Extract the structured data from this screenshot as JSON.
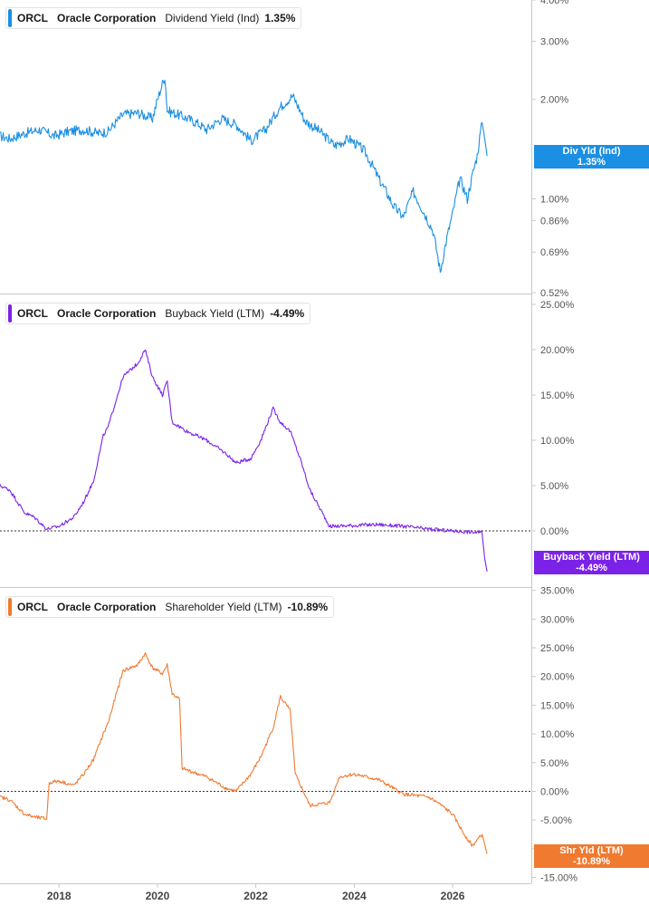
{
  "chart_data": [
    {
      "type": "line",
      "ticker": "ORCL",
      "company": "Oracle Corporation",
      "metric": "Dividend Yield (Ind)",
      "current_value": "1.35%",
      "tag_label": "Div Yld (Ind)",
      "color": "#1a8fe3",
      "scale": "log",
      "ylim": [
        0.52,
        4.0
      ],
      "yticks": [
        4.0,
        3.0,
        2.0,
        1.0,
        0.86,
        0.69,
        0.52
      ],
      "ytick_labels": [
        "4.00%",
        "3.00%",
        "2.00%",
        "1.00%",
        "0.86%",
        "0.69%",
        "0.52%"
      ],
      "zero_line": false,
      "x": [
        2016.8,
        2017.0,
        2017.3,
        2017.6,
        2017.9,
        2018.2,
        2018.5,
        2018.8,
        2019.0,
        2019.3,
        2019.6,
        2019.9,
        2020.15,
        2020.2,
        2020.5,
        2020.8,
        2021.0,
        2021.3,
        2021.6,
        2021.9,
        2022.2,
        2022.5,
        2022.75,
        2023.0,
        2023.3,
        2023.6,
        2023.9,
        2024.2,
        2024.5,
        2024.8,
        2025.0,
        2025.2,
        2025.4,
        2025.6,
        2025.75,
        2026.0,
        2026.15,
        2026.3,
        2026.5,
        2026.6,
        2026.7
      ],
      "values": [
        1.55,
        1.52,
        1.58,
        1.62,
        1.55,
        1.6,
        1.62,
        1.58,
        1.6,
        1.8,
        1.82,
        1.75,
        2.35,
        1.85,
        1.78,
        1.7,
        1.62,
        1.75,
        1.68,
        1.5,
        1.62,
        1.9,
        2.05,
        1.72,
        1.6,
        1.45,
        1.52,
        1.4,
        1.15,
        0.95,
        0.88,
        1.05,
        0.92,
        0.8,
        0.6,
        0.9,
        1.15,
        1.0,
        1.35,
        1.7,
        1.35
      ]
    },
    {
      "type": "line",
      "ticker": "ORCL",
      "company": "Oracle Corporation",
      "metric": "Buyback Yield (LTM)",
      "current_value": "-4.49%",
      "tag_label": "Buyback Yield (LTM)",
      "color": "#7b22e8",
      "scale": "linear",
      "ylim": [
        -7.0,
        27.0
      ],
      "yticks": [
        25,
        20,
        15,
        10,
        5,
        0
      ],
      "ytick_labels": [
        "25.00%",
        "20.00%",
        "15.00%",
        "10.00%",
        "5.00%",
        "0.00%"
      ],
      "zero_line": true,
      "x": [
        2016.8,
        2017.0,
        2017.3,
        2017.5,
        2017.75,
        2018.0,
        2018.3,
        2018.5,
        2018.7,
        2018.9,
        2019.0,
        2019.3,
        2019.6,
        2019.75,
        2019.9,
        2020.1,
        2020.2,
        2020.3,
        2020.6,
        2021.0,
        2021.4,
        2021.6,
        2021.9,
        2022.1,
        2022.35,
        2022.5,
        2022.7,
        2022.9,
        2023.1,
        2023.5,
        2024.0,
        2024.5,
        2025.0,
        2025.5,
        2026.0,
        2026.6,
        2026.65,
        2026.7
      ],
      "values": [
        5.0,
        4.5,
        2.0,
        1.5,
        0.2,
        0.5,
        1.5,
        3.2,
        5.5,
        10.5,
        11.5,
        17.0,
        18.5,
        20.0,
        17.0,
        15.0,
        16.5,
        12.0,
        11.0,
        10.0,
        8.5,
        7.5,
        8.0,
        10.0,
        13.5,
        12.0,
        11.0,
        8.0,
        4.5,
        0.5,
        0.6,
        0.7,
        0.5,
        0.2,
        0.0,
        -0.2,
        -3.0,
        -4.49
      ]
    },
    {
      "type": "line",
      "ticker": "ORCL",
      "company": "Oracle Corporation",
      "metric": "Shareholder Yield (LTM)",
      "current_value": "-10.89%",
      "tag_label": "Shr Yld (LTM)",
      "color": "#f07a30",
      "scale": "linear",
      "ylim": [
        -16.5,
        37.0
      ],
      "yticks": [
        35,
        30,
        25,
        20,
        15,
        10,
        5,
        0,
        -5,
        -10,
        -15
      ],
      "ytick_labels": [
        "35.00%",
        "30.00%",
        "25.00%",
        "20.00%",
        "15.00%",
        "10.00%",
        "5.00%",
        "0.00%",
        "-5.00%",
        "-10.00%",
        "-15.00%"
      ],
      "zero_line": true,
      "x": [
        2016.8,
        2017.0,
        2017.3,
        2017.5,
        2017.75,
        2017.8,
        2018.0,
        2018.3,
        2018.5,
        2018.7,
        2018.9,
        2019.0,
        2019.3,
        2019.6,
        2019.75,
        2019.9,
        2020.1,
        2020.2,
        2020.3,
        2020.45,
        2020.5,
        2021.0,
        2021.4,
        2021.6,
        2021.9,
        2022.1,
        2022.35,
        2022.5,
        2022.7,
        2022.8,
        2023.1,
        2023.5,
        2023.7,
        2024.0,
        2024.5,
        2025.0,
        2025.5,
        2025.7,
        2026.0,
        2026.2,
        2026.4,
        2026.6,
        2026.7
      ],
      "values": [
        -1.0,
        -1.5,
        -4.0,
        -4.5,
        -4.8,
        1.5,
        1.8,
        1.0,
        3.0,
        5.5,
        10.0,
        12.0,
        21.0,
        22.0,
        24.0,
        21.5,
        20.5,
        22.0,
        17.0,
        16.0,
        4.0,
        2.5,
        0.5,
        0.0,
        3.0,
        6.0,
        11.0,
        16.5,
        14.0,
        3.0,
        -2.5,
        -2.0,
        2.5,
        3.0,
        2.0,
        -0.5,
        -1.0,
        -2.0,
        -4.0,
        -7.0,
        -9.5,
        -7.5,
        -10.89
      ]
    }
  ],
  "x_axis": {
    "ticks": [
      2018,
      2020,
      2022,
      2024,
      2026
    ],
    "tick_labels": [
      "2018",
      "2020",
      "2022",
      "2024",
      "2026"
    ],
    "range": [
      2016.8,
      2027.6
    ]
  }
}
